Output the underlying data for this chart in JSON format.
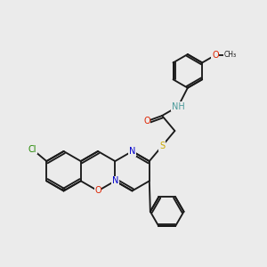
{
  "bg_color": "#ebebeb",
  "bond_color": "#1a1a1a",
  "atom_colors": {
    "O": "#dd2200",
    "N": "#0000cc",
    "S": "#ccaa00",
    "Cl": "#228800",
    "NH": "#4a9a9a",
    "C": "#1a1a1a"
  },
  "font_size": 7.0,
  "lw": 1.35,
  "ring_R": 0.85,
  "ph_R": 0.72,
  "mph_R": 0.72
}
